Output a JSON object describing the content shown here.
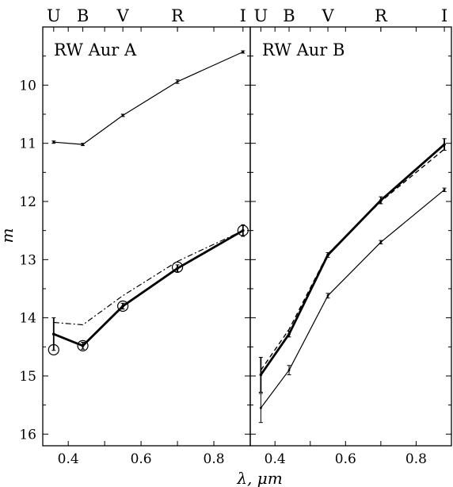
{
  "figure": {
    "xlabel": "λ, μm",
    "ylabel": "m"
  },
  "chart_data": [
    {
      "type": "line",
      "title": "RW Aur A",
      "xlabel": "λ, μm",
      "ylabel": "m",
      "xlim": [
        0.33,
        0.9
      ],
      "ylim": [
        16.2,
        9.0
      ],
      "y_inverted": true,
      "xticks": [
        "0.4",
        "0.6",
        "0.8"
      ],
      "yticks": [
        "10",
        "11",
        "12",
        "13",
        "14",
        "15",
        "16"
      ],
      "bands": [
        {
          "label": "U",
          "x": 0.36
        },
        {
          "label": "B",
          "x": 0.44
        },
        {
          "label": "V",
          "x": 0.55
        },
        {
          "label": "R",
          "x": 0.7
        },
        {
          "label": "I",
          "x": 0.88
        }
      ],
      "series": [
        {
          "style": "thin",
          "x": [
            0.36,
            0.44,
            0.55,
            0.7,
            0.88
          ],
          "y": [
            10.98,
            11.02,
            10.52,
            9.94,
            9.43
          ],
          "err": [
            0.02,
            0.02,
            0.02,
            0.03,
            0.02
          ],
          "circles": false
        },
        {
          "style": "dashdot",
          "x": [
            0.36,
            0.44,
            0.55,
            0.7,
            0.88
          ],
          "y": [
            14.08,
            14.12,
            13.62,
            13.03,
            12.5
          ],
          "err": [
            0,
            0,
            0,
            0,
            0
          ],
          "circles": false
        },
        {
          "style": "thick",
          "x": [
            0.36,
            0.44,
            0.55,
            0.7,
            0.88
          ],
          "y": [
            14.28,
            14.48,
            13.8,
            13.15,
            12.5
          ],
          "err": [
            0.28,
            0.06,
            0.05,
            0.06,
            0.1
          ],
          "circles": false
        },
        {
          "style": "circles",
          "x": [
            0.36,
            0.44,
            0.55,
            0.7,
            0.88
          ],
          "y": [
            14.55,
            14.48,
            13.8,
            13.13,
            12.5
          ],
          "err": [
            0,
            0,
            0,
            0,
            0
          ],
          "circles": true
        }
      ]
    },
    {
      "type": "line",
      "title": "RW Aur B",
      "xlabel": "λ, μm",
      "ylabel": "m",
      "xlim": [
        0.33,
        0.9
      ],
      "ylim": [
        16.2,
        9.0
      ],
      "y_inverted": true,
      "xticks": [
        "0.4",
        "0.6",
        "0.8"
      ],
      "yticks": [],
      "bands": [
        {
          "label": "U",
          "x": 0.36
        },
        {
          "label": "B",
          "x": 0.44
        },
        {
          "label": "V",
          "x": 0.55
        },
        {
          "label": "R",
          "x": 0.7
        },
        {
          "label": "I",
          "x": 0.88
        }
      ],
      "series": [
        {
          "style": "thin",
          "x": [
            0.36,
            0.44,
            0.55,
            0.7,
            0.88
          ],
          "y": [
            15.55,
            14.9,
            13.62,
            12.7,
            11.8
          ],
          "err": [
            0.25,
            0.08,
            0.04,
            0.03,
            0.03
          ],
          "circles": false
        },
        {
          "style": "dashed",
          "x": [
            0.36,
            0.44,
            0.55,
            0.7,
            0.88
          ],
          "y": [
            14.9,
            14.2,
            12.9,
            12.0,
            11.1
          ],
          "err": [
            0,
            0,
            0,
            0,
            0
          ],
          "circles": false
        },
        {
          "style": "thick",
          "x": [
            0.36,
            0.44,
            0.55,
            0.7,
            0.88
          ],
          "y": [
            14.98,
            14.28,
            12.92,
            11.98,
            11.02
          ],
          "err": [
            0.3,
            0.05,
            0.04,
            0.06,
            0.1
          ],
          "circles": false
        }
      ]
    }
  ]
}
